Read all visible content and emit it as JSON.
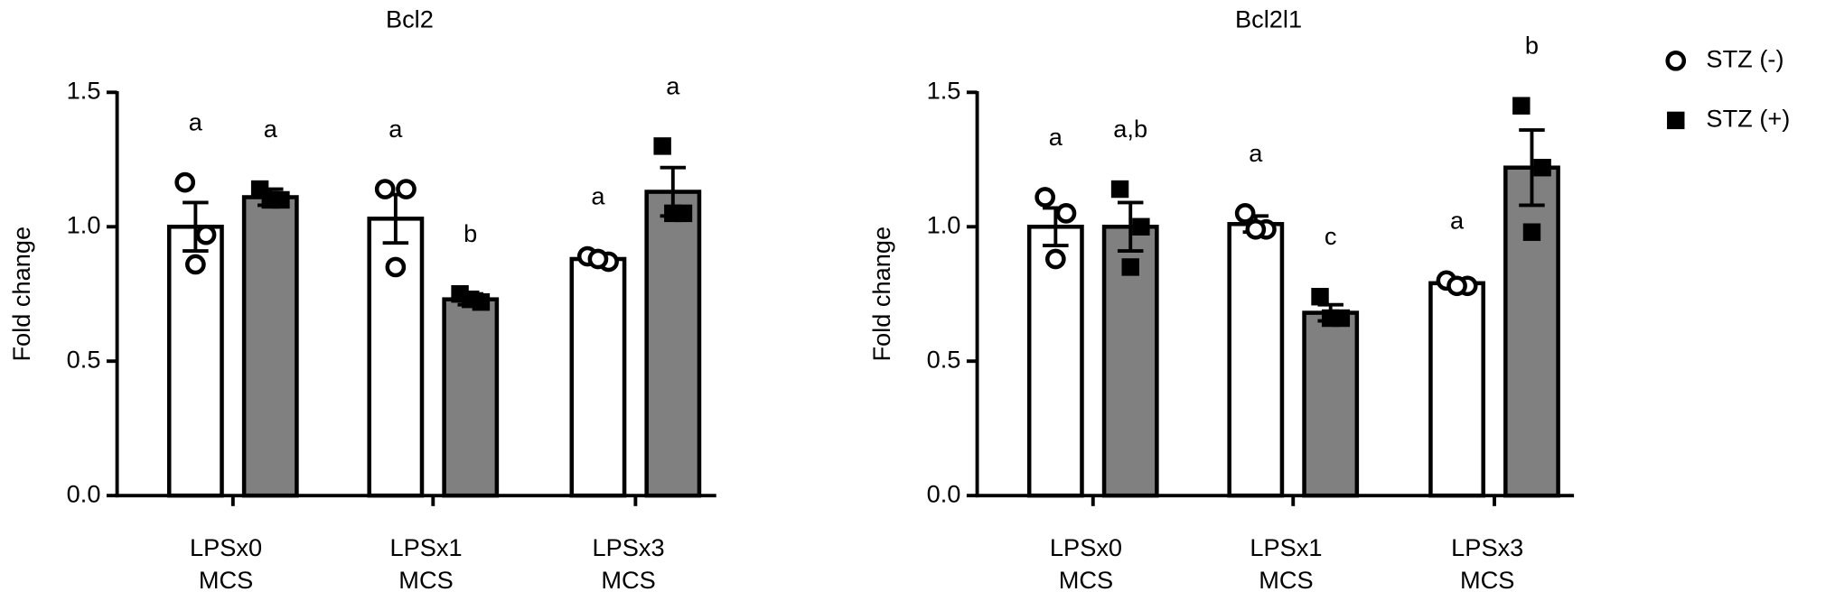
{
  "chart_data": [
    {
      "type": "bar",
      "title": "Bcl2",
      "ylabel": "Fold change",
      "categories": [
        [
          "LPSx0",
          "MCS"
        ],
        [
          "LPSx1",
          "MCS"
        ],
        [
          "LPSx3",
          "MCS"
        ]
      ],
      "ylim": [
        0,
        1.5
      ],
      "yticks": [
        {
          "value": 0,
          "label": "0.0"
        },
        {
          "value": 0.5,
          "label": "0.5"
        },
        {
          "value": 1,
          "label": "1.0"
        },
        {
          "value": 1.5,
          "label": "1.5"
        }
      ],
      "series": [
        {
          "color": "#ffffff",
          "marker": "circle",
          "values": [
            1.0,
            1.03,
            0.88
          ],
          "errors": [
            0.09,
            0.09,
            0.01
          ],
          "points": [
            [
              1.165,
              0.97,
              0.86
            ],
            [
              1.14,
              1.14,
              0.85
            ],
            [
              0.89,
              0.87,
              0.88
            ]
          ],
          "letters": [
            "a",
            "a",
            "a"
          ]
        },
        {
          "color": "#808080",
          "marker": "square",
          "values": [
            1.11,
            0.73,
            1.13
          ],
          "errors": [
            0.03,
            0.02,
            0.09
          ],
          "points": [
            [
              1.14,
              1.1,
              1.1
            ],
            [
              0.75,
              0.72,
              0.73
            ],
            [
              1.3,
              1.05,
              1.05
            ]
          ],
          "letters": [
            "a",
            "b",
            "a"
          ]
        }
      ]
    },
    {
      "type": "bar",
      "title": "Bcl2l1",
      "ylabel": "Fold change",
      "categories": [
        [
          "LPSx0",
          "MCS"
        ],
        [
          "LPSx1",
          "MCS"
        ],
        [
          "LPSx3",
          "MCS"
        ]
      ],
      "ylim": [
        0,
        1.5
      ],
      "yticks": [
        {
          "value": 0,
          "label": "0.0"
        },
        {
          "value": 0.5,
          "label": "0.5"
        },
        {
          "value": 1,
          "label": "1.0"
        },
        {
          "value": 1.5,
          "label": "1.5"
        }
      ],
      "legend": "right",
      "series": [
        {
          "name": "STZ (-)",
          "color": "#ffffff",
          "marker": "circle",
          "values": [
            1.0,
            1.01,
            0.79
          ],
          "errors": [
            0.07,
            0.03,
            0.01
          ],
          "points": [
            [
              1.11,
              1.05,
              0.88
            ],
            [
              1.05,
              0.99,
              0.99
            ],
            [
              0.8,
              0.78,
              0.78
            ]
          ],
          "letters": [
            "a",
            "a",
            "a"
          ]
        },
        {
          "name": "STZ (+)",
          "color": "#808080",
          "marker": "square",
          "values": [
            1.0,
            0.68,
            1.22
          ],
          "errors": [
            0.09,
            0.03,
            0.14
          ],
          "points": [
            [
              1.14,
              1.0,
              0.85
            ],
            [
              0.74,
              0.66,
              0.66
            ],
            [
              1.45,
              1.22,
              0.98
            ]
          ],
          "letters": [
            "a,b",
            "c",
            "b"
          ]
        }
      ]
    }
  ]
}
